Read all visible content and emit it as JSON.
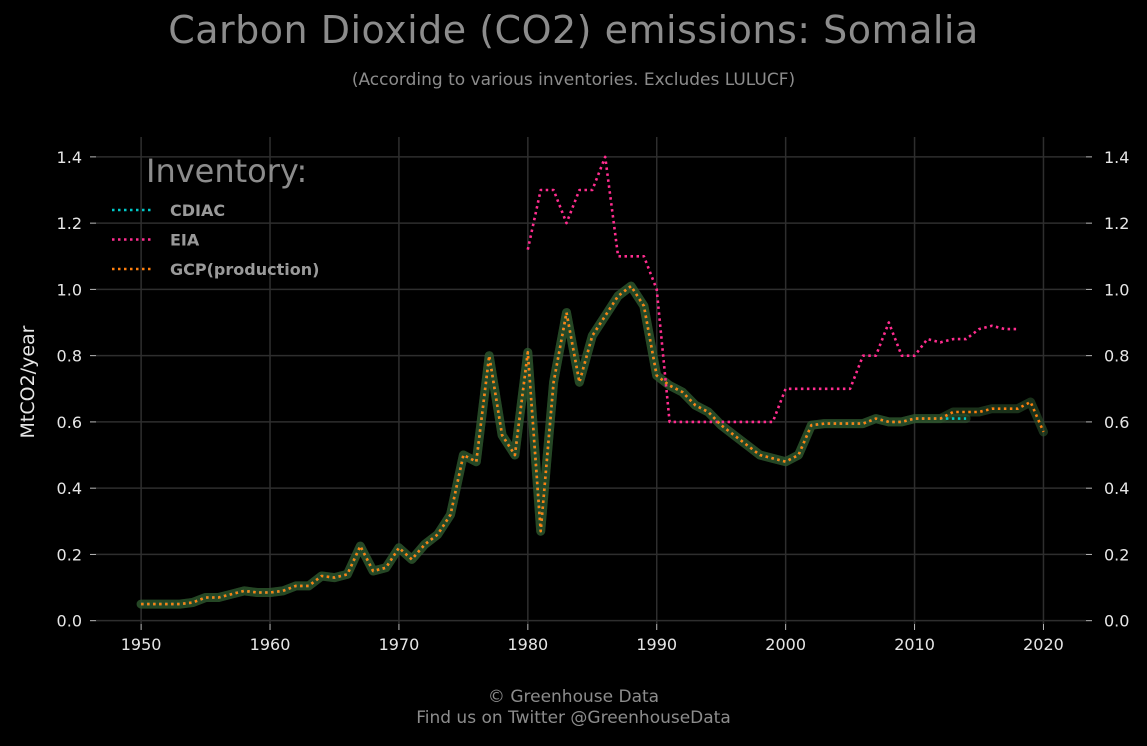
{
  "title": "Carbon Dioxide (CO2) emissions: Somalia",
  "subtitle": "(According to various inventories. Excludes LULUCF)",
  "footer": {
    "line1": "© Greenhouse Data",
    "line2": "Find us on Twitter @GreenhouseData"
  },
  "colors": {
    "background": "#000000",
    "grid": "#2e2e2e",
    "cdiac": "#00c8c8",
    "eia": "#ff2d8f",
    "gcp": "#ff7f0e",
    "glow": "#2f5a2f"
  },
  "chart_data": {
    "type": "line",
    "ylabel": "MtCO2/year",
    "xlabel": "",
    "xlim": [
      1946.5,
      2023.3
    ],
    "ylim": [
      -0.01,
      1.46
    ],
    "x_ticks": [
      "1950",
      "1960",
      "1970",
      "1980",
      "1990",
      "2000",
      "2010",
      "2020"
    ],
    "y_ticks": [
      "0.0",
      "0.2",
      "0.4",
      "0.6",
      "0.8",
      "1.0",
      "1.2",
      "1.4"
    ],
    "grid": true,
    "legend_title": "Inventory:",
    "legend_position": "top-left",
    "series": [
      {
        "name": "CDIAC",
        "color": "#00c8c8",
        "x": [
          1950,
          1951,
          1952,
          1953,
          1954,
          1955,
          1956,
          1957,
          1958,
          1959,
          1960,
          1961,
          1962,
          1963,
          1964,
          1965,
          1966,
          1967,
          1968,
          1969,
          1970,
          1971,
          1972,
          1973,
          1974,
          1975,
          1976,
          1977,
          1978,
          1979,
          1980,
          1981,
          1982,
          1983,
          1984,
          1985,
          1986,
          1987,
          1988,
          1989,
          1990,
          1991,
          1992,
          1993,
          1994,
          1995,
          1996,
          1997,
          1998,
          1999,
          2000,
          2001,
          2002,
          2003,
          2004,
          2005,
          2006,
          2007,
          2008,
          2009,
          2010,
          2011,
          2012,
          2013,
          2014
        ],
        "y": [
          0.05,
          0.05,
          0.05,
          0.05,
          0.055,
          0.07,
          0.07,
          0.08,
          0.09,
          0.085,
          0.085,
          0.09,
          0.105,
          0.105,
          0.135,
          0.13,
          0.14,
          0.225,
          0.15,
          0.16,
          0.22,
          0.185,
          0.23,
          0.26,
          0.32,
          0.5,
          0.48,
          0.8,
          0.56,
          0.5,
          0.81,
          0.27,
          0.72,
          0.93,
          0.72,
          0.86,
          0.92,
          0.98,
          1.01,
          0.95,
          0.74,
          0.71,
          0.69,
          0.65,
          0.63,
          0.59,
          0.56,
          0.53,
          0.5,
          0.49,
          0.48,
          0.5,
          0.59,
          0.595,
          0.595,
          0.595,
          0.595,
          0.61,
          0.6,
          0.6,
          0.61,
          0.61,
          0.61,
          0.61,
          0.61
        ]
      },
      {
        "name": "EIA",
        "color": "#ff2d8f",
        "x": [
          1980,
          1981,
          1982,
          1983,
          1984,
          1985,
          1986,
          1987,
          1988,
          1989,
          1990,
          1991,
          1992,
          1993,
          1994,
          1995,
          1996,
          1997,
          1998,
          1999,
          2000,
          2001,
          2002,
          2003,
          2004,
          2005,
          2006,
          2007,
          2008,
          2009,
          2010,
          2011,
          2012,
          2013,
          2014,
          2015,
          2016,
          2017,
          2018
        ],
        "y": [
          1.12,
          1.3,
          1.3,
          1.2,
          1.3,
          1.3,
          1.4,
          1.1,
          1.1,
          1.1,
          1.0,
          0.6,
          0.6,
          0.6,
          0.6,
          0.6,
          0.6,
          0.6,
          0.6,
          0.6,
          0.7,
          0.7,
          0.7,
          0.7,
          0.7,
          0.7,
          0.8,
          0.8,
          0.9,
          0.8,
          0.8,
          0.85,
          0.84,
          0.85,
          0.85,
          0.88,
          0.89,
          0.88,
          0.88
        ]
      },
      {
        "name": "GCP(production)",
        "color": "#ff7f0e",
        "x": [
          1950,
          1951,
          1952,
          1953,
          1954,
          1955,
          1956,
          1957,
          1958,
          1959,
          1960,
          1961,
          1962,
          1963,
          1964,
          1965,
          1966,
          1967,
          1968,
          1969,
          1970,
          1971,
          1972,
          1973,
          1974,
          1975,
          1976,
          1977,
          1978,
          1979,
          1980,
          1981,
          1982,
          1983,
          1984,
          1985,
          1986,
          1987,
          1988,
          1989,
          1990,
          1991,
          1992,
          1993,
          1994,
          1995,
          1996,
          1997,
          1998,
          1999,
          2000,
          2001,
          2002,
          2003,
          2004,
          2005,
          2006,
          2007,
          2008,
          2009,
          2010,
          2011,
          2012,
          2013,
          2014,
          2015,
          2016,
          2017,
          2018,
          2019,
          2020
        ],
        "y": [
          0.05,
          0.05,
          0.05,
          0.05,
          0.055,
          0.07,
          0.07,
          0.08,
          0.09,
          0.085,
          0.085,
          0.09,
          0.105,
          0.105,
          0.135,
          0.13,
          0.14,
          0.225,
          0.15,
          0.16,
          0.22,
          0.185,
          0.23,
          0.26,
          0.32,
          0.5,
          0.48,
          0.8,
          0.56,
          0.5,
          0.81,
          0.27,
          0.72,
          0.93,
          0.72,
          0.86,
          0.92,
          0.98,
          1.01,
          0.95,
          0.74,
          0.71,
          0.69,
          0.65,
          0.63,
          0.59,
          0.56,
          0.53,
          0.5,
          0.49,
          0.48,
          0.5,
          0.59,
          0.595,
          0.595,
          0.595,
          0.595,
          0.61,
          0.6,
          0.6,
          0.61,
          0.61,
          0.61,
          0.63,
          0.63,
          0.63,
          0.64,
          0.64,
          0.64,
          0.66,
          0.57
        ]
      }
    ]
  }
}
